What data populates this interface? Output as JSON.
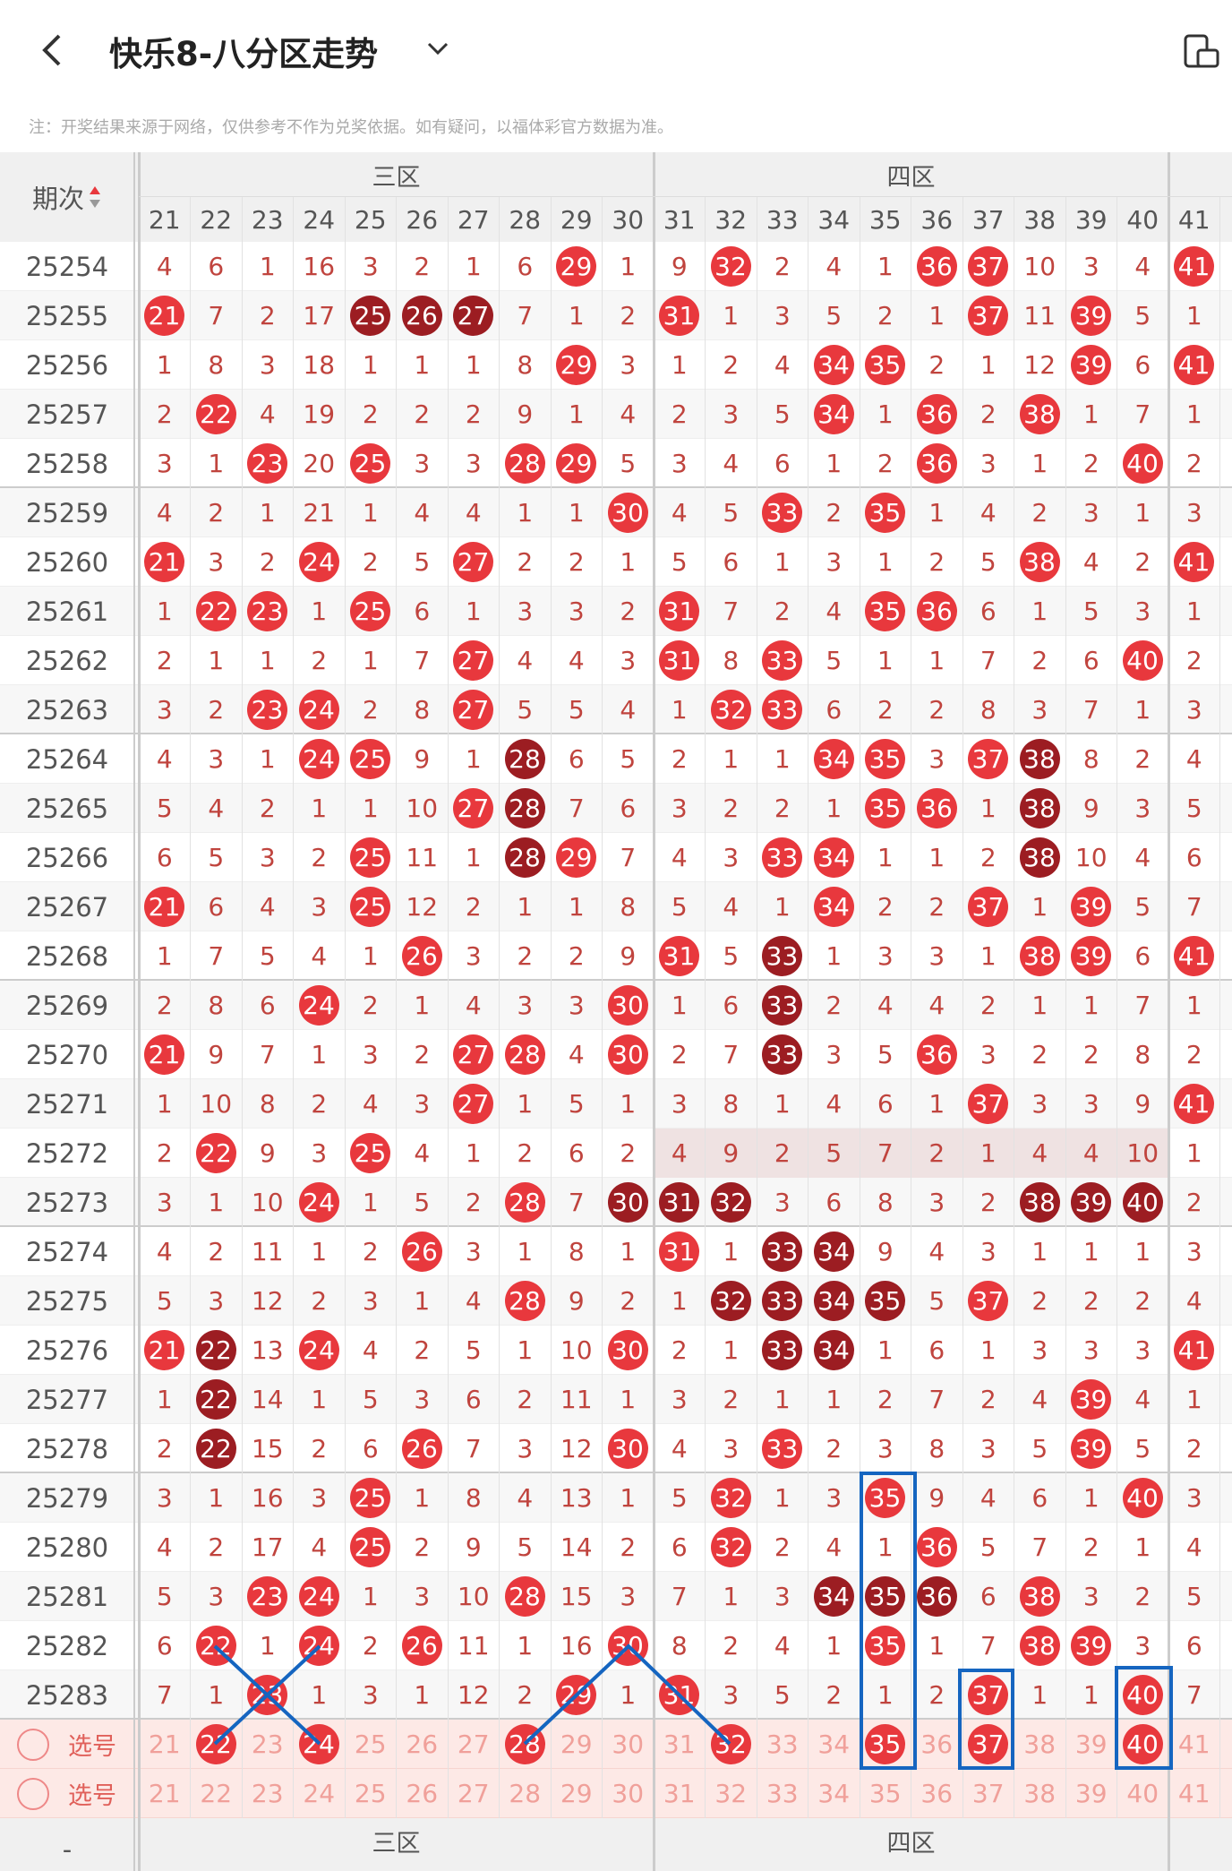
{
  "header": {
    "title": "快乐8-八分区走势"
  },
  "note": "注：开奖结果来源于网络，仅供参考不作为兑奖依据。如有疑问，以福体彩官方数据为准。",
  "table": {
    "issue_header": "期次",
    "zones": [
      "三区",
      "四区"
    ],
    "columns": [
      "21",
      "22",
      "23",
      "24",
      "25",
      "26",
      "27",
      "28",
      "29",
      "30",
      "31",
      "32",
      "33",
      "34",
      "35",
      "36",
      "37",
      "38",
      "39",
      "40",
      "41"
    ],
    "rows": [
      {
        "issue": "25254",
        "cells": [
          4,
          6,
          1,
          16,
          3,
          2,
          1,
          6,
          29,
          1,
          9,
          32,
          2,
          4,
          1,
          36,
          37,
          10,
          3,
          4,
          41
        ],
        "styles": "nnnnnnnnrnnrnnnrrnnnr"
      },
      {
        "issue": "25255",
        "cells": [
          21,
          7,
          2,
          17,
          25,
          26,
          27,
          7,
          1,
          2,
          31,
          1,
          3,
          5,
          2,
          1,
          37,
          11,
          39,
          5,
          1
        ],
        "styles": "rnnndddnnnrnnnnnrnrnn"
      },
      {
        "issue": "25256",
        "cells": [
          1,
          8,
          3,
          18,
          1,
          1,
          1,
          8,
          29,
          3,
          1,
          2,
          4,
          34,
          35,
          2,
          1,
          12,
          39,
          6,
          41
        ],
        "styles": "nnnnnnnnrnnnnrrnnnrnr"
      },
      {
        "issue": "25257",
        "cells": [
          2,
          22,
          4,
          19,
          2,
          2,
          2,
          9,
          1,
          4,
          2,
          3,
          5,
          34,
          1,
          36,
          2,
          38,
          1,
          7,
          1
        ],
        "styles": "nrnnnnnnnnnnnrnrnrnnn"
      },
      {
        "issue": "25258",
        "cells": [
          3,
          1,
          23,
          20,
          25,
          3,
          3,
          28,
          29,
          5,
          3,
          4,
          6,
          1,
          2,
          36,
          3,
          1,
          2,
          40,
          2
        ],
        "styles": "nnrnrnnrrnnnnnnrnnnrn"
      },
      {
        "issue": "25259",
        "cells": [
          4,
          2,
          1,
          21,
          1,
          4,
          4,
          1,
          1,
          30,
          4,
          5,
          33,
          2,
          35,
          1,
          4,
          2,
          3,
          1,
          3
        ],
        "styles": "nnnnnnnnnrnnrnrnnnnnn"
      },
      {
        "issue": "25260",
        "cells": [
          21,
          3,
          2,
          24,
          2,
          5,
          27,
          2,
          2,
          1,
          5,
          6,
          1,
          3,
          1,
          2,
          5,
          38,
          4,
          2,
          41
        ],
        "styles": "rnnrnnrnnnnnnnnnnrnnr"
      },
      {
        "issue": "25261",
        "cells": [
          1,
          22,
          23,
          1,
          25,
          6,
          1,
          3,
          3,
          2,
          31,
          7,
          2,
          4,
          35,
          36,
          6,
          1,
          5,
          3,
          1
        ],
        "styles": "nrrnrnnnnnrnnnrrnnnnn"
      },
      {
        "issue": "25262",
        "cells": [
          2,
          1,
          1,
          2,
          1,
          7,
          27,
          4,
          4,
          3,
          31,
          8,
          33,
          5,
          1,
          1,
          7,
          2,
          6,
          40,
          2
        ],
        "styles": "nnnnnnrnnnrnrnnnnnnrn"
      },
      {
        "issue": "25263",
        "cells": [
          3,
          2,
          23,
          24,
          2,
          8,
          27,
          5,
          5,
          4,
          1,
          32,
          33,
          6,
          2,
          2,
          8,
          3,
          7,
          1,
          3
        ],
        "styles": "nnrrnnrnnnnrrnnnnnnnn"
      },
      {
        "issue": "25264",
        "cells": [
          4,
          3,
          1,
          24,
          25,
          9,
          1,
          28,
          6,
          5,
          2,
          1,
          1,
          34,
          35,
          3,
          37,
          38,
          8,
          2,
          4
        ],
        "styles": "nnnrrnndnnnnnrrnrdnnn"
      },
      {
        "issue": "25265",
        "cells": [
          5,
          4,
          2,
          1,
          1,
          10,
          27,
          28,
          7,
          6,
          3,
          2,
          2,
          1,
          35,
          36,
          1,
          38,
          9,
          3,
          5
        ],
        "styles": "nnnnnnrdnnnnnnrrndnnn"
      },
      {
        "issue": "25266",
        "cells": [
          6,
          5,
          3,
          2,
          25,
          11,
          1,
          28,
          29,
          7,
          4,
          3,
          33,
          34,
          1,
          1,
          2,
          38,
          10,
          4,
          6
        ],
        "styles": "nnnnrnndrnnnrrnnndnnn"
      },
      {
        "issue": "25267",
        "cells": [
          21,
          6,
          4,
          3,
          25,
          12,
          2,
          1,
          1,
          8,
          5,
          4,
          1,
          34,
          2,
          2,
          37,
          1,
          39,
          5,
          7
        ],
        "styles": "rnnnrnnnnnnnnrnnrnrnn"
      },
      {
        "issue": "25268",
        "cells": [
          1,
          7,
          5,
          4,
          1,
          26,
          3,
          2,
          2,
          9,
          31,
          5,
          33,
          1,
          3,
          3,
          1,
          38,
          39,
          6,
          41
        ],
        "styles": "nnnnnrnnnnrndnnnnrrnr"
      },
      {
        "issue": "25269",
        "cells": [
          2,
          8,
          6,
          24,
          2,
          1,
          4,
          3,
          3,
          30,
          1,
          6,
          33,
          2,
          4,
          4,
          2,
          1,
          1,
          7,
          1
        ],
        "styles": "nnnrnnnnnrnndnnnnnnnn"
      },
      {
        "issue": "25270",
        "cells": [
          21,
          9,
          7,
          1,
          3,
          2,
          27,
          28,
          4,
          30,
          2,
          7,
          33,
          3,
          5,
          36,
          3,
          2,
          2,
          8,
          2
        ],
        "styles": "rnnnnnrrnrnndnnrnnnnn"
      },
      {
        "issue": "25271",
        "cells": [
          1,
          10,
          8,
          2,
          4,
          3,
          27,
          1,
          5,
          1,
          3,
          8,
          1,
          4,
          6,
          1,
          37,
          3,
          3,
          9,
          41
        ],
        "styles": "nnnnnnrnnnnnnnnnrnnnr"
      },
      {
        "issue": "25272",
        "cells": [
          2,
          22,
          9,
          3,
          25,
          4,
          1,
          2,
          6,
          2,
          4,
          9,
          2,
          5,
          7,
          2,
          1,
          4,
          4,
          10,
          1
        ],
        "styles": "nrnnrnnnnnnnnnnnnnnnn"
      },
      {
        "issue": "25273",
        "cells": [
          3,
          1,
          10,
          24,
          1,
          5,
          2,
          28,
          7,
          30,
          31,
          32,
          3,
          6,
          8,
          3,
          2,
          38,
          39,
          40,
          2
        ],
        "styles": "nnnrnnnrndddnnnnndddn"
      },
      {
        "issue": "25274",
        "cells": [
          4,
          2,
          11,
          1,
          2,
          26,
          3,
          1,
          8,
          1,
          31,
          1,
          33,
          34,
          9,
          4,
          3,
          1,
          1,
          1,
          3
        ],
        "styles": "nnnnnrnnnnrnddnnnnnnn"
      },
      {
        "issue": "25275",
        "cells": [
          5,
          3,
          12,
          2,
          3,
          1,
          4,
          28,
          9,
          2,
          1,
          32,
          33,
          34,
          35,
          5,
          37,
          2,
          2,
          2,
          4
        ],
        "styles": "nnnnnnnrnnnddddnrnnnn"
      },
      {
        "issue": "25276",
        "cells": [
          21,
          22,
          13,
          24,
          4,
          2,
          5,
          1,
          10,
          30,
          2,
          1,
          33,
          34,
          1,
          6,
          1,
          3,
          3,
          3,
          41
        ],
        "styles": "rdnrnnnnnrnnddnnnnnnr"
      },
      {
        "issue": "25277",
        "cells": [
          1,
          22,
          14,
          1,
          5,
          3,
          6,
          2,
          11,
          1,
          3,
          2,
          1,
          1,
          2,
          7,
          2,
          4,
          39,
          4,
          1
        ],
        "styles": "ndnnnnnnnnnnnnnnnnrnn"
      },
      {
        "issue": "25278",
        "cells": [
          2,
          22,
          15,
          2,
          6,
          26,
          7,
          3,
          12,
          30,
          4,
          3,
          33,
          2,
          3,
          8,
          3,
          5,
          39,
          5,
          2
        ],
        "styles": "ndnnnrnnnrnnrnnnnnrnn"
      },
      {
        "issue": "25279",
        "cells": [
          3,
          1,
          16,
          3,
          25,
          1,
          8,
          4,
          13,
          1,
          5,
          32,
          1,
          3,
          35,
          9,
          4,
          6,
          1,
          40,
          3
        ],
        "styles": "nnnnrnnnnnnrnnrnnnnrn"
      },
      {
        "issue": "25280",
        "cells": [
          4,
          2,
          17,
          4,
          25,
          2,
          9,
          5,
          14,
          2,
          6,
          32,
          2,
          4,
          1,
          36,
          5,
          7,
          2,
          1,
          4
        ],
        "styles": "nnnnrnnnnnnrnnnrnnnnn"
      },
      {
        "issue": "25281",
        "cells": [
          5,
          3,
          23,
          24,
          1,
          3,
          10,
          28,
          15,
          3,
          7,
          1,
          3,
          34,
          35,
          36,
          6,
          38,
          3,
          2,
          5
        ],
        "styles": "nnrrnnnrnnnnndddnrnnn"
      },
      {
        "issue": "25282",
        "cells": [
          6,
          22,
          1,
          24,
          2,
          26,
          11,
          1,
          16,
          30,
          8,
          2,
          4,
          1,
          35,
          1,
          7,
          38,
          39,
          3,
          6
        ],
        "styles": "nrnrnrnnnrnnnnrnnrrnn"
      },
      {
        "issue": "25283",
        "cells": [
          7,
          1,
          23,
          1,
          3,
          1,
          12,
          2,
          29,
          1,
          31,
          3,
          5,
          2,
          1,
          2,
          37,
          1,
          1,
          40,
          7
        ],
        "styles": "nnrnnnnnrnrnnnnnrnnrn"
      }
    ],
    "select_rows": [
      {
        "label": "选号",
        "cells": [
          21,
          22,
          23,
          24,
          25,
          26,
          27,
          28,
          29,
          30,
          31,
          32,
          33,
          34,
          35,
          36,
          37,
          38,
          39,
          40,
          41
        ],
        "styles": "nrnrnnnrnnnrnnrnrnnrn"
      },
      {
        "label": "选号",
        "cells": [
          21,
          22,
          23,
          24,
          25,
          26,
          27,
          28,
          29,
          30,
          31,
          32,
          33,
          34,
          35,
          36,
          37,
          38,
          39,
          40,
          41
        ],
        "styles": "nnnnnnnnnnnnnnnnnnnnn"
      }
    ],
    "footer_zones": [
      "三区",
      "四区"
    ],
    "footer_left": "-"
  }
}
